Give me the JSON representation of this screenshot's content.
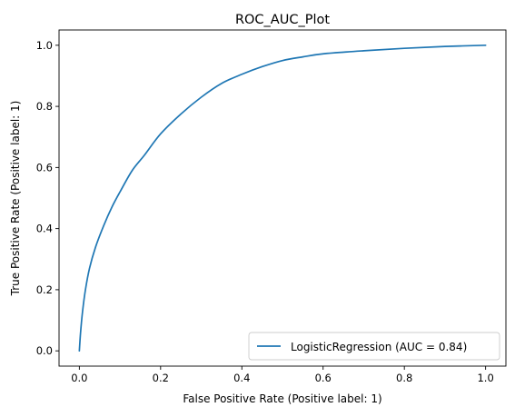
{
  "chart_data": {
    "type": "line",
    "title": "ROC_AUC_Plot",
    "xlabel": "False Positive Rate (Positive label: 1)",
    "ylabel": "True Positive Rate (Positive label: 1)",
    "xlim": [
      -0.05,
      1.05
    ],
    "ylim": [
      -0.05,
      1.05
    ],
    "xticks": [
      "0.0",
      "0.2",
      "0.4",
      "0.6",
      "0.8",
      "1.0"
    ],
    "yticks": [
      "0.0",
      "0.2",
      "0.4",
      "0.6",
      "0.8",
      "1.0"
    ],
    "grid": false,
    "legend_position": "lower-right",
    "line_color": "#1f77b4",
    "series": [
      {
        "name": "LogisticRegression (AUC = 0.84)",
        "x": [
          0.0,
          0.003,
          0.008,
          0.015,
          0.025,
          0.04,
          0.06,
          0.08,
          0.1,
          0.13,
          0.16,
          0.2,
          0.25,
          0.3,
          0.35,
          0.4,
          0.45,
          0.5,
          0.55,
          0.6,
          0.7,
          0.8,
          0.9,
          1.0
        ],
        "y": [
          0.0,
          0.06,
          0.13,
          0.2,
          0.27,
          0.34,
          0.41,
          0.47,
          0.52,
          0.59,
          0.64,
          0.71,
          0.775,
          0.83,
          0.875,
          0.905,
          0.93,
          0.95,
          0.962,
          0.972,
          0.982,
          0.99,
          0.996,
          1.0
        ]
      }
    ]
  }
}
